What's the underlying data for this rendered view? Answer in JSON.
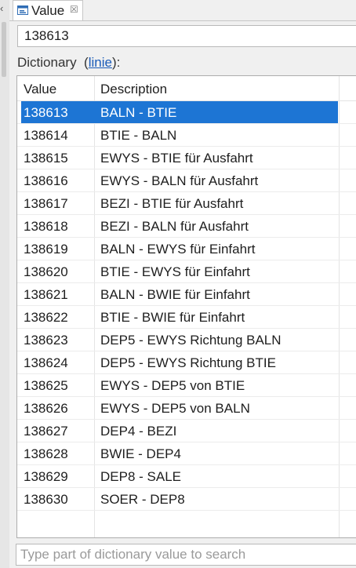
{
  "tab": {
    "title": "Value",
    "icon": "value-view-icon",
    "close": "☒"
  },
  "value_field": {
    "value": "138613"
  },
  "dictionary": {
    "label_prefix": "Dictionary",
    "link_open": "(",
    "link_text": "linie",
    "link_close": "):"
  },
  "table": {
    "columns": [
      "Value",
      "Description"
    ],
    "selected_index": 0,
    "rows": [
      {
        "value": "138613",
        "description": "BALN - BTIE"
      },
      {
        "value": "138614",
        "description": "BTIE - BALN"
      },
      {
        "value": "138615",
        "description": "EWYS - BTIE für Ausfahrt"
      },
      {
        "value": "138616",
        "description": "EWYS - BALN für Ausfahrt"
      },
      {
        "value": "138617",
        "description": "BEZI - BTIE für Ausfahrt"
      },
      {
        "value": "138618",
        "description": "BEZI - BALN für Ausfahrt"
      },
      {
        "value": "138619",
        "description": "BALN - EWYS für Einfahrt"
      },
      {
        "value": "138620",
        "description": "BTIE - EWYS für Einfahrt"
      },
      {
        "value": "138621",
        "description": "BALN - BWIE für Einfahrt"
      },
      {
        "value": "138622",
        "description": "BTIE - BWIE für Einfahrt"
      },
      {
        "value": "138623",
        "description": "DEP5 - EWYS Richtung BALN"
      },
      {
        "value": "138624",
        "description": "DEP5 - EWYS Richtung BTIE"
      },
      {
        "value": "138625",
        "description": "EWYS - DEP5 von BTIE"
      },
      {
        "value": "138626",
        "description": "EWYS - DEP5 von BALN"
      },
      {
        "value": "138627",
        "description": "DEP4 - BEZI"
      },
      {
        "value": "138628",
        "description": "BWIE - DEP4"
      },
      {
        "value": "138629",
        "description": "DEP8 - SALE"
      },
      {
        "value": "138630",
        "description": "SOER - DEP8"
      }
    ]
  },
  "search": {
    "placeholder": "Type part of dictionary value to search",
    "value": ""
  },
  "colors": {
    "selection": "#1d75d4",
    "link": "#1a5bb8"
  }
}
